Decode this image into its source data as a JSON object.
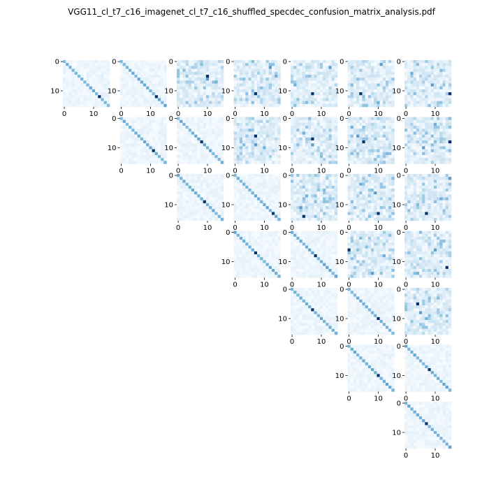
{
  "title": "VGG11_cl_t7_c16_imagenet_cl_t7_c16_shuffled_specdec_confusion_matrix_analysis.pdf",
  "chart_data": {
    "type": "heatmap",
    "layout": "upper-triangular grid of confusion matrices",
    "grid_size": 7,
    "matrix_size": 16,
    "colormap": "Blues",
    "colors": {
      "low": "#f7fbff",
      "mid": "#6baed6",
      "high": "#08306b"
    },
    "x_tick_labels": [
      "0",
      "10"
    ],
    "y_tick_labels": [
      "0",
      "10"
    ],
    "x_tick_values": [
      0,
      10
    ],
    "y_tick_values": [
      0,
      10
    ],
    "grid": false,
    "matrices": [
      {
        "row": 0,
        "col": 0,
        "pattern": "diagonal",
        "peak": [
          12,
          12
        ]
      },
      {
        "row": 0,
        "col": 1,
        "pattern": "diagonal",
        "peak": [
          12,
          12
        ]
      },
      {
        "row": 0,
        "col": 2,
        "pattern": "scattered",
        "peaks": [
          [
            5,
            10
          ],
          [
            6,
            10
          ],
          [
            7,
            13
          ],
          [
            1,
            8
          ]
        ]
      },
      {
        "row": 0,
        "col": 3,
        "pattern": "scattered",
        "peaks": [
          [
            11,
            7
          ],
          [
            2,
            12
          ],
          [
            5,
            14
          ],
          [
            0,
            6
          ]
        ]
      },
      {
        "row": 0,
        "col": 4,
        "pattern": "scattered",
        "peaks": [
          [
            11,
            7
          ],
          [
            2,
            13
          ],
          [
            8,
            1
          ],
          [
            14,
            5
          ]
        ]
      },
      {
        "row": 0,
        "col": 5,
        "pattern": "scattered",
        "peaks": [
          [
            11,
            4
          ],
          [
            1,
            11
          ],
          [
            14,
            10
          ],
          [
            8,
            1
          ]
        ]
      },
      {
        "row": 0,
        "col": 6,
        "pattern": "scattered",
        "peaks": [
          [
            11,
            15
          ],
          [
            8,
            9
          ],
          [
            4,
            2
          ],
          [
            3,
            12
          ]
        ]
      },
      {
        "row": 1,
        "col": 1,
        "pattern": "diagonal",
        "peak": [
          11,
          11
        ]
      },
      {
        "row": 1,
        "col": 2,
        "pattern": "diagonal",
        "peak": [
          8,
          8
        ]
      },
      {
        "row": 1,
        "col": 3,
        "pattern": "scattered",
        "peaks": [
          [
            6,
            7
          ],
          [
            9,
            7
          ],
          [
            10,
            10
          ],
          [
            4,
            5
          ]
        ]
      },
      {
        "row": 1,
        "col": 4,
        "pattern": "scattered",
        "peaks": [
          [
            7,
            7
          ],
          [
            9,
            7
          ],
          [
            5,
            4
          ],
          [
            13,
            10
          ]
        ]
      },
      {
        "row": 1,
        "col": 5,
        "pattern": "scattered",
        "peaks": [
          [
            8,
            5
          ],
          [
            6,
            3
          ],
          [
            3,
            1
          ],
          [
            12,
            13
          ]
        ]
      },
      {
        "row": 1,
        "col": 6,
        "pattern": "scattered",
        "peaks": [
          [
            8,
            15
          ],
          [
            10,
            6
          ],
          [
            2,
            10
          ],
          [
            5,
            3
          ]
        ]
      },
      {
        "row": 2,
        "col": 2,
        "pattern": "diagonal",
        "peak": [
          9,
          9
        ]
      },
      {
        "row": 2,
        "col": 3,
        "pattern": "diagonal",
        "peak": [
          13,
          13
        ]
      },
      {
        "row": 2,
        "col": 4,
        "pattern": "scattered",
        "peaks": [
          [
            14,
            4
          ],
          [
            11,
            3
          ],
          [
            7,
            5
          ],
          [
            5,
            11
          ]
        ]
      },
      {
        "row": 2,
        "col": 5,
        "pattern": "scattered",
        "peaks": [
          [
            13,
            10
          ],
          [
            6,
            9
          ],
          [
            3,
            4
          ],
          [
            9,
            1
          ]
        ]
      },
      {
        "row": 2,
        "col": 6,
        "pattern": "scattered",
        "peaks": [
          [
            13,
            7
          ],
          [
            1,
            15
          ],
          [
            8,
            12
          ],
          [
            10,
            4
          ]
        ]
      },
      {
        "row": 3,
        "col": 3,
        "pattern": "diagonal",
        "peak": [
          7,
          7
        ]
      },
      {
        "row": 3,
        "col": 4,
        "pattern": "diagonal",
        "peak": [
          8,
          8
        ]
      },
      {
        "row": 3,
        "col": 5,
        "pattern": "scattered",
        "peaks": [
          [
            6,
            0
          ],
          [
            14,
            8
          ],
          [
            8,
            12
          ],
          [
            2,
            4
          ]
        ]
      },
      {
        "row": 3,
        "col": 6,
        "pattern": "scattered",
        "peaks": [
          [
            12,
            14
          ],
          [
            6,
            10
          ],
          [
            14,
            4
          ],
          [
            4,
            12
          ]
        ]
      },
      {
        "row": 4,
        "col": 4,
        "pattern": "diagonal",
        "peak": [
          7,
          7
        ]
      },
      {
        "row": 4,
        "col": 5,
        "pattern": "diagonal",
        "peak": [
          10,
          10
        ]
      },
      {
        "row": 4,
        "col": 6,
        "pattern": "scattered",
        "peaks": [
          [
            5,
            4
          ],
          [
            8,
            5
          ],
          [
            10,
            7
          ],
          [
            3,
            11
          ]
        ]
      },
      {
        "row": 5,
        "col": 5,
        "pattern": "diagonal",
        "peak": [
          10,
          10
        ]
      },
      {
        "row": 5,
        "col": 6,
        "pattern": "diagonal",
        "peak": [
          8,
          8
        ]
      },
      {
        "row": 6,
        "col": 6,
        "pattern": "diagonal",
        "peak": [
          7,
          7
        ]
      }
    ]
  }
}
